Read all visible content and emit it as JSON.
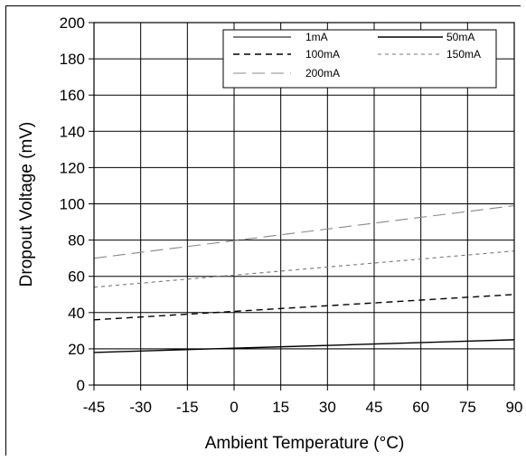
{
  "chart_data": {
    "type": "line",
    "title": "",
    "xlabel": "Ambient Temperature (°C)",
    "ylabel": "Dropout Voltage (mV)",
    "xlim": [
      -45,
      90
    ],
    "ylim": [
      0,
      200
    ],
    "x_ticks": [
      "-45",
      "-30",
      "-15",
      "0",
      "15",
      "30",
      "45",
      "60",
      "75",
      "90"
    ],
    "y_ticks": [
      "0",
      "20",
      "40",
      "60",
      "80",
      "100",
      "120",
      "140",
      "160",
      "180",
      "200"
    ],
    "grid": true,
    "legend_position": "top-right",
    "series": [
      {
        "name": "1mA",
        "style": "solid-thin",
        "color": "#000000",
        "x": [
          -45,
          90
        ],
        "y": [
          20,
          20
        ]
      },
      {
        "name": "50mA",
        "style": "solid",
        "color": "#000000",
        "x": [
          -45,
          90
        ],
        "y": [
          18,
          25
        ]
      },
      {
        "name": "100mA",
        "style": "dashed",
        "color": "#000000",
        "x": [
          -45,
          90
        ],
        "y": [
          36,
          50
        ]
      },
      {
        "name": "150mA",
        "style": "short-dash",
        "color": "#777777",
        "x": [
          -45,
          90
        ],
        "y": [
          54,
          74
        ]
      },
      {
        "name": "200mA",
        "style": "long-dash",
        "color": "#888888",
        "x": [
          -45,
          90
        ],
        "y": [
          70,
          99
        ]
      }
    ]
  }
}
